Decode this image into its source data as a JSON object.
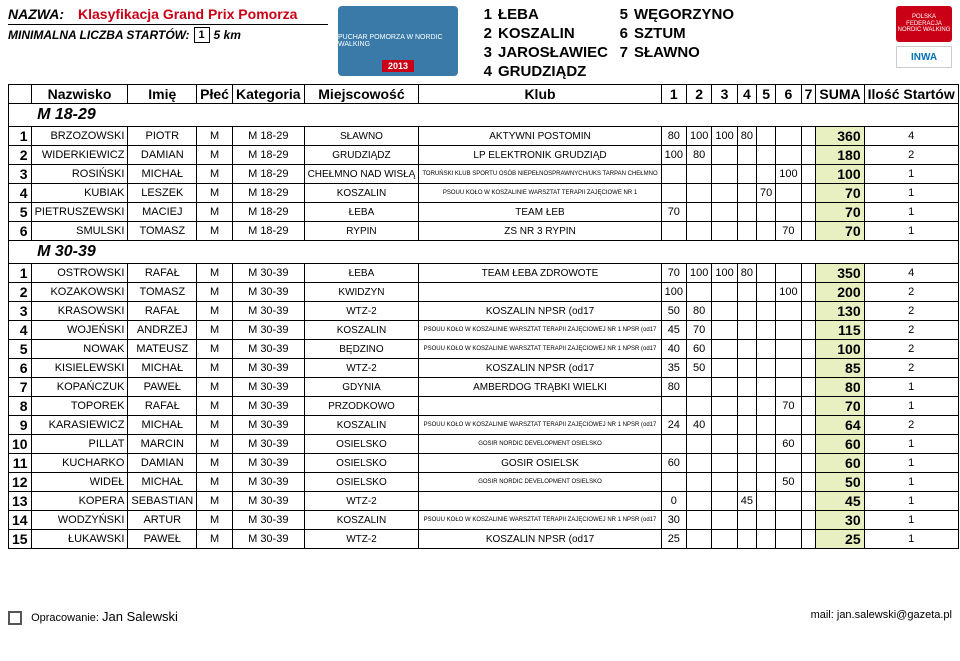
{
  "header": {
    "nazwa_label": "NAZWA:",
    "nazwa_value": "Klasyfikacja Grand Prix Pomorza",
    "min_label": "MINIMALNA LICZBA STARTÓW:",
    "min_value": "1",
    "dist": "5 km",
    "logo_text": "PUCHAR POMORZA W NORDIC WALKING",
    "logo_year": "2013",
    "legend": [
      {
        "n": "1",
        "name": "ŁEBA"
      },
      {
        "n": "2",
        "name": "KOSZALIN"
      },
      {
        "n": "3",
        "name": "JAROSŁAWIEC"
      },
      {
        "n": "4",
        "name": "GRUDZIĄDZ"
      },
      {
        "n": "5",
        "name": "WĘGORZYNO"
      },
      {
        "n": "6",
        "name": "SZTUM"
      },
      {
        "n": "7",
        "name": "SŁAWNO"
      }
    ],
    "flag_text": "POLSKA FEDERACJA NORDIC WALKING",
    "inwa": "INWA"
  },
  "columns": {
    "nazwisko": "Nazwisko",
    "imie": "Imię",
    "plec": "Płeć",
    "kategoria": "Kategoria",
    "miejscowosc": "Miejscowość",
    "klub": "Klub",
    "c1": "1",
    "c2": "2",
    "c3": "3",
    "c4": "4",
    "c5": "5",
    "c6": "6",
    "c7": "7",
    "suma": "SUMA",
    "ilosc": "Ilość Startów"
  },
  "groups": [
    {
      "title": "M 18-29",
      "rows": [
        {
          "rank": "1",
          "naz": "BRZOZOWSKI",
          "imie": "PIOTR",
          "plec": "M",
          "kat": "M 18-29",
          "miejsc": "SŁAWNO",
          "klub": "AKTYWNI POSTOMIN",
          "s": [
            "80",
            "100",
            "100",
            "80",
            "",
            "",
            ""
          ],
          "suma": "360",
          "st": "4",
          "tiny": false
        },
        {
          "rank": "2",
          "naz": "WIDERKIEWICZ",
          "imie": "DAMIAN",
          "plec": "M",
          "kat": "M 18-29",
          "miejsc": "GRUDZIĄDZ",
          "klub": "LP ELEKTRONIK GRUDZIĄD",
          "s": [
            "100",
            "80",
            "",
            "",
            "",
            "",
            ""
          ],
          "suma": "180",
          "st": "2",
          "tiny": false
        },
        {
          "rank": "3",
          "naz": "ROSIŃSKI",
          "imie": "MICHAŁ",
          "plec": "M",
          "kat": "M 18-29",
          "miejsc": "CHEŁMNO NAD WISŁĄ",
          "klub": "TORUŃSKI KLUB SPORTU OSÓB NIEPEŁNOSPRAWNYCH/UKS TARPAN CHEŁMNO",
          "s": [
            "",
            "",
            "",
            "",
            "",
            "100",
            ""
          ],
          "suma": "100",
          "st": "1",
          "tiny": true
        },
        {
          "rank": "4",
          "naz": "KUBIAK",
          "imie": "LESZEK",
          "plec": "M",
          "kat": "M 18-29",
          "miejsc": "KOSZALIN",
          "klub": "PSOUU KOŁO W KOSZALINIE WARSZTAT TERAPII ZAJĘCIOWE NR 1",
          "s": [
            "",
            "",
            "",
            "",
            "70",
            "",
            ""
          ],
          "suma": "70",
          "st": "1",
          "tiny": true
        },
        {
          "rank": "5",
          "naz": "PIETRUSZEWSKI",
          "imie": "MACIEJ",
          "plec": "M",
          "kat": "M 18-29",
          "miejsc": "ŁEBA",
          "klub": "TEAM ŁEB",
          "s": [
            "70",
            "",
            "",
            "",
            "",
            "",
            ""
          ],
          "suma": "70",
          "st": "1",
          "tiny": false
        },
        {
          "rank": "6",
          "naz": "SMULSKI",
          "imie": "TOMASZ",
          "plec": "M",
          "kat": "M 18-29",
          "miejsc": "RYPIN",
          "klub": "ZS NR 3 RYPIN",
          "s": [
            "",
            "",
            "",
            "",
            "",
            "70",
            ""
          ],
          "suma": "70",
          "st": "1",
          "tiny": false
        }
      ]
    },
    {
      "title": "M 30-39",
      "rows": [
        {
          "rank": "1",
          "naz": "OSTROWSKI",
          "imie": "RAFAŁ",
          "plec": "M",
          "kat": "M 30-39",
          "miejsc": "ŁEBA",
          "klub": "TEAM ŁEBA ZDROWOTE",
          "s": [
            "70",
            "100",
            "100",
            "80",
            "",
            "",
            ""
          ],
          "suma": "350",
          "st": "4",
          "tiny": false
        },
        {
          "rank": "2",
          "naz": "KOZAKOWSKI",
          "imie": "TOMASZ",
          "plec": "M",
          "kat": "M 30-39",
          "miejsc": "KWIDZYN",
          "klub": "",
          "s": [
            "100",
            "",
            "",
            "",
            "",
            "100",
            ""
          ],
          "suma": "200",
          "st": "2",
          "tiny": false
        },
        {
          "rank": "3",
          "naz": "KRASOWSKI",
          "imie": "RAFAŁ",
          "plec": "M",
          "kat": "M 30-39",
          "miejsc": "WTZ-2",
          "klub": "KOSZALIN NPSR (od17",
          "s": [
            "50",
            "80",
            "",
            "",
            "",
            "",
            ""
          ],
          "suma": "130",
          "st": "2",
          "tiny": false
        },
        {
          "rank": "4",
          "naz": "WOJEŃSKI",
          "imie": "ANDRZEJ",
          "plec": "M",
          "kat": "M 30-39",
          "miejsc": "KOSZALIN",
          "klub": "PSOUU KOŁO W KOSZALINIE WARSZTAT TERAPII ZAJĘCIOWEJ NR 1 NPSR (od17",
          "s": [
            "45",
            "70",
            "",
            "",
            "",
            "",
            ""
          ],
          "suma": "115",
          "st": "2",
          "tiny": true
        },
        {
          "rank": "5",
          "naz": "NOWAK",
          "imie": "MATEUSZ",
          "plec": "M",
          "kat": "M 30-39",
          "miejsc": "BĘDZINO",
          "klub": "PSOUU KOŁO W KOSZALINIE WARSZTAT TERAPII ZAJĘCIOWEJ NR 1 NPSR (od17",
          "s": [
            "40",
            "60",
            "",
            "",
            "",
            "",
            ""
          ],
          "suma": "100",
          "st": "2",
          "tiny": true
        },
        {
          "rank": "6",
          "naz": "KISIELEWSKI",
          "imie": "MICHAŁ",
          "plec": "M",
          "kat": "M 30-39",
          "miejsc": "WTZ-2",
          "klub": "KOSZALIN NPSR (od17",
          "s": [
            "35",
            "50",
            "",
            "",
            "",
            "",
            ""
          ],
          "suma": "85",
          "st": "2",
          "tiny": false
        },
        {
          "rank": "7",
          "naz": "KOPAŃCZUK",
          "imie": "PAWEŁ",
          "plec": "M",
          "kat": "M 30-39",
          "miejsc": "GDYNIA",
          "klub": "AMBERDOG TRĄBKI WIELKI",
          "s": [
            "80",
            "",
            "",
            "",
            "",
            "",
            ""
          ],
          "suma": "80",
          "st": "1",
          "tiny": false
        },
        {
          "rank": "8",
          "naz": "TOPOREK",
          "imie": "RAFAŁ",
          "plec": "M",
          "kat": "M 30-39",
          "miejsc": "PRZODKOWO",
          "klub": "",
          "s": [
            "",
            "",
            "",
            "",
            "",
            "70",
            ""
          ],
          "suma": "70",
          "st": "1",
          "tiny": false
        },
        {
          "rank": "9",
          "naz": "KARASIEWICZ",
          "imie": "MICHAŁ",
          "plec": "M",
          "kat": "M 30-39",
          "miejsc": "KOSZALIN",
          "klub": "PSOUU KOŁO W KOSZALINIE WARSZTAT TERAPII ZAJĘCIOWEJ NR 1 NPSR (od17",
          "s": [
            "24",
            "40",
            "",
            "",
            "",
            "",
            ""
          ],
          "suma": "64",
          "st": "2",
          "tiny": true
        },
        {
          "rank": "10",
          "naz": "PILLAT",
          "imie": "MARCIN",
          "plec": "M",
          "kat": "M 30-39",
          "miejsc": "OSIELSKO",
          "klub": "GOSIR NORDIC DEVELOPMENT OSIELSKO",
          "s": [
            "",
            "",
            "",
            "",
            "",
            "60",
            ""
          ],
          "suma": "60",
          "st": "1",
          "tiny": true
        },
        {
          "rank": "11",
          "naz": "KUCHARKO",
          "imie": "DAMIAN",
          "plec": "M",
          "kat": "M 30-39",
          "miejsc": "OSIELSKO",
          "klub": "GOSIR OSIELSK",
          "s": [
            "60",
            "",
            "",
            "",
            "",
            "",
            ""
          ],
          "suma": "60",
          "st": "1",
          "tiny": false
        },
        {
          "rank": "12",
          "naz": "WIDEŁ",
          "imie": "MICHAŁ",
          "plec": "M",
          "kat": "M 30-39",
          "miejsc": "OSIELSKO",
          "klub": "GOSIR NORDIC DEVELOPMENT OSIELSKO",
          "s": [
            "",
            "",
            "",
            "",
            "",
            "50",
            ""
          ],
          "suma": "50",
          "st": "1",
          "tiny": true
        },
        {
          "rank": "13",
          "naz": "KOPERA",
          "imie": "SEBASTIAN",
          "plec": "M",
          "kat": "M 30-39",
          "miejsc": "WTZ-2",
          "klub": "",
          "s": [
            "0",
            "",
            "",
            "45",
            "",
            "",
            ""
          ],
          "suma": "45",
          "st": "1",
          "tiny": false
        },
        {
          "rank": "14",
          "naz": "WODZYŃSKI",
          "imie": "ARTUR",
          "plec": "M",
          "kat": "M 30-39",
          "miejsc": "KOSZALIN",
          "klub": "PSOUU KOŁO W KOSZALINIE WARSZTAT TERAPII ZAJĘCIOWEJ NR 1 NPSR (od17",
          "s": [
            "30",
            "",
            "",
            "",
            "",
            "",
            ""
          ],
          "suma": "30",
          "st": "1",
          "tiny": true
        },
        {
          "rank": "15",
          "naz": "ŁUKAWSKI",
          "imie": "PAWEŁ",
          "plec": "M",
          "kat": "M 30-39",
          "miejsc": "WTZ-2",
          "klub": "KOSZALIN NPSR (od17",
          "s": [
            "25",
            "",
            "",
            "",
            "",
            "",
            ""
          ],
          "suma": "25",
          "st": "1",
          "tiny": false
        }
      ]
    }
  ],
  "footer": {
    "opr_label": "Opracowanie:",
    "opr_name": "Jan Salewski",
    "mail_label": "mail:",
    "mail_value": "jan.salewski@gazeta.pl"
  },
  "colors": {
    "accent_red": "#c90016",
    "suma_bg": "#e8efc0",
    "logo_bg": "#3a7aa8"
  }
}
